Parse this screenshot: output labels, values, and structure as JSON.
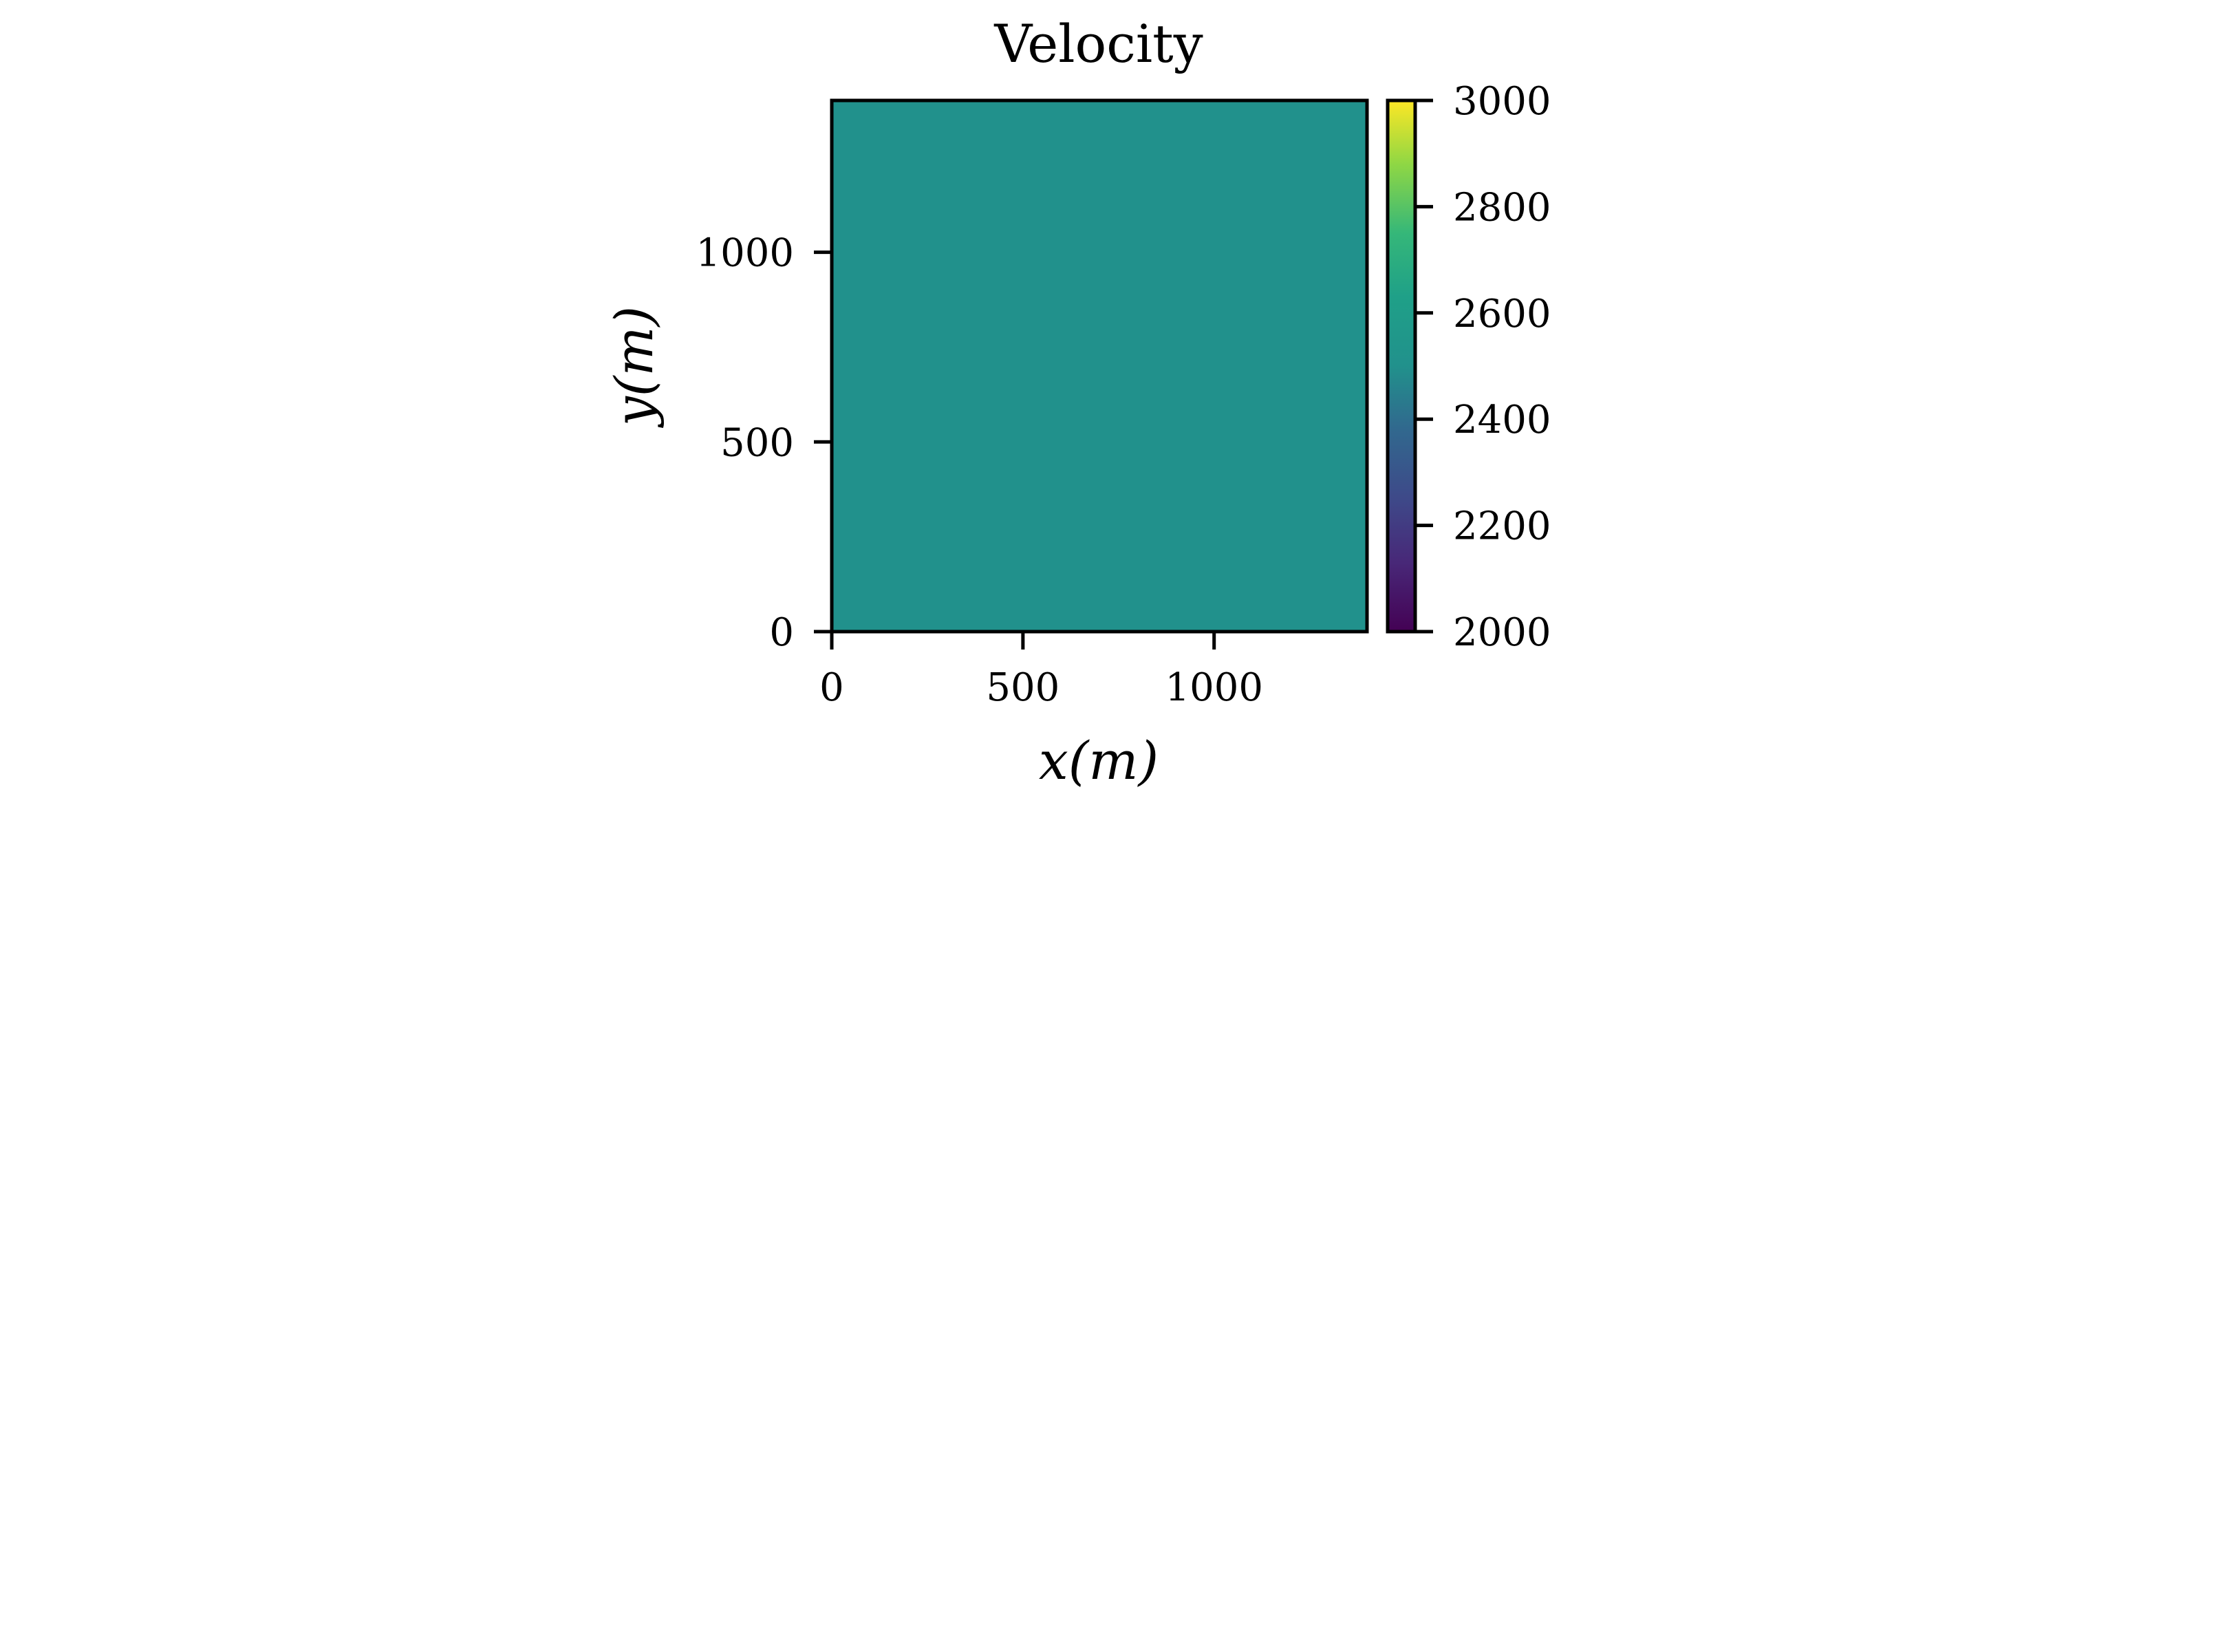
{
  "chart_data": {
    "type": "heatmap",
    "title": "Velocity",
    "xlabel": "x(m)",
    "ylabel": "y(m)",
    "xlim": [
      0,
      1400
    ],
    "ylim": [
      0,
      1400
    ],
    "xticks": [
      0,
      500,
      1000
    ],
    "yticks": [
      0,
      500,
      1000
    ],
    "field_value": 2500,
    "colorbar": {
      "colormap": "viridis",
      "range": [
        2000,
        3000
      ],
      "ticks": [
        2000,
        2200,
        2400,
        2600,
        2800,
        3000
      ]
    },
    "grid": false
  }
}
